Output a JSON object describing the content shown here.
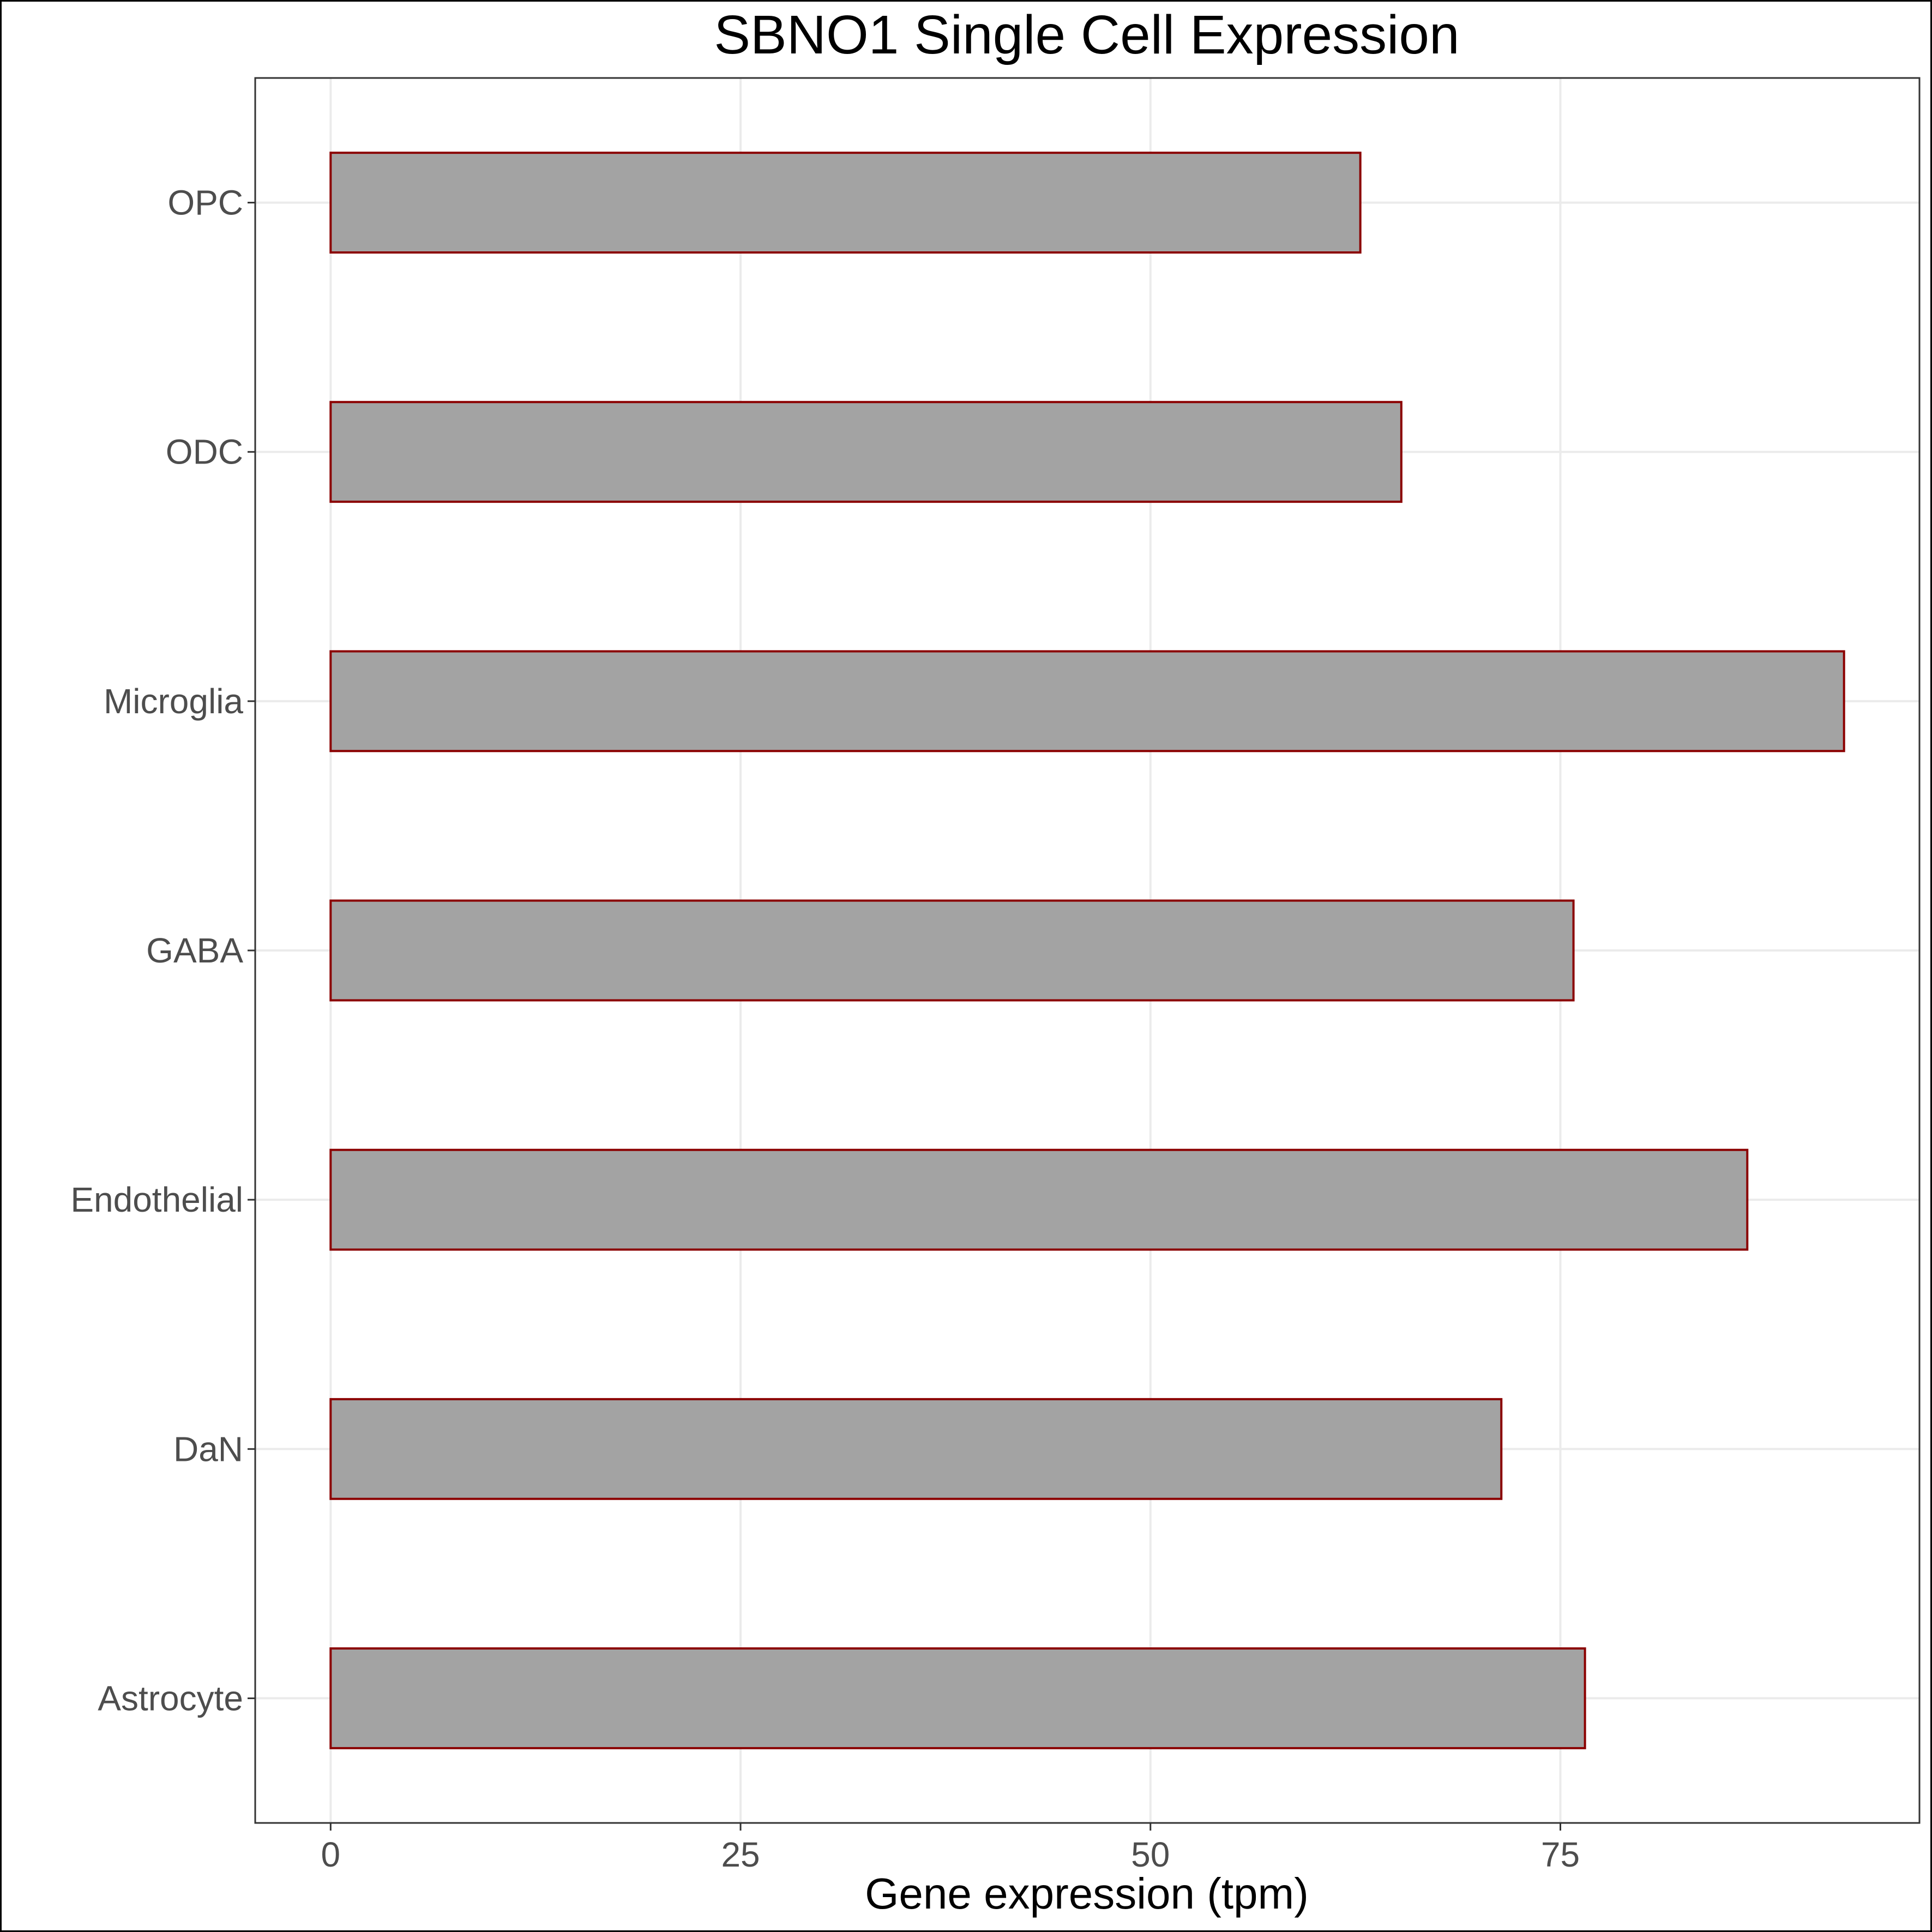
{
  "chart_data": {
    "type": "bar",
    "orientation": "horizontal",
    "title": "SBNO1 Single Cell Expression",
    "xlabel": "Gene expression (tpm)",
    "ylabel": "",
    "categories": [
      "Astrocyte",
      "DaN",
      "Endothelial",
      "GABA",
      "Microglia",
      "ODC",
      "OPC"
    ],
    "values": [
      76.5,
      71.4,
      86.4,
      75.8,
      92.3,
      65.3,
      62.8
    ],
    "xlim": [
      -4.6,
      96.9
    ],
    "xticks": [
      0,
      25,
      50,
      75
    ],
    "xtick_labels": [
      "0",
      "25",
      "50",
      "75"
    ],
    "grid": true,
    "legend": "none",
    "colors": {
      "bar_fill": "#a3a3a3",
      "bar_outline": "#8b0000",
      "grid": "#ebebeb",
      "tick_label": "#4d4d4d"
    }
  }
}
